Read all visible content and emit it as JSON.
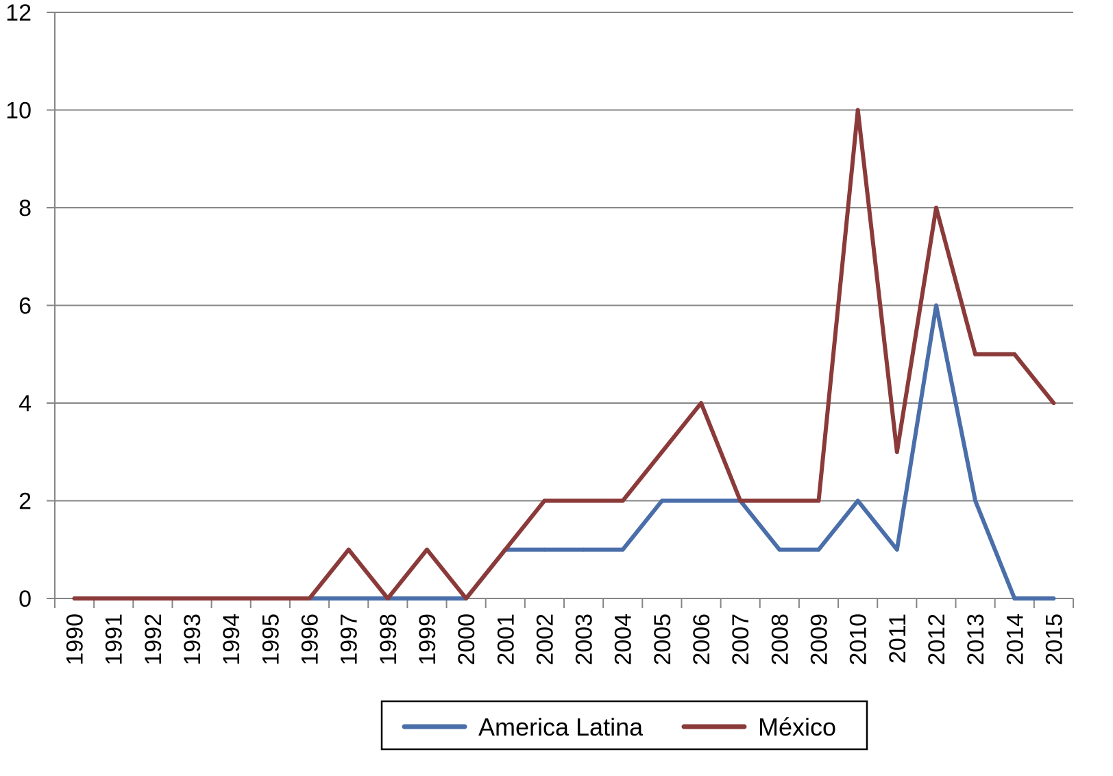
{
  "chart_data": {
    "type": "line",
    "title": "",
    "xlabel": "",
    "ylabel": "",
    "x": [
      "1990",
      "1991",
      "1992",
      "1993",
      "1994",
      "1995",
      "1996",
      "1997",
      "1998",
      "1999",
      "2000",
      "2001",
      "2002",
      "2003",
      "2004",
      "2005",
      "2006",
      "2007",
      "2008",
      "2009",
      "2010",
      "2011",
      "2012",
      "2013",
      "2014",
      "2015"
    ],
    "ylim": [
      0,
      12
    ],
    "yticks": [
      "0",
      "2",
      "4",
      "6",
      "8",
      "10",
      "12"
    ],
    "grid": true,
    "legend_position": "bottom",
    "series": [
      {
        "name": "America Latina",
        "color": "#4a6ea9",
        "values": [
          0,
          0,
          0,
          0,
          0,
          0,
          0,
          0,
          0,
          0,
          0,
          1,
          1,
          1,
          1,
          2,
          2,
          2,
          1,
          1,
          2,
          1,
          6,
          2,
          0,
          0
        ]
      },
      {
        "name": "México",
        "color": "#8b3a3a",
        "values": [
          0,
          0,
          0,
          0,
          0,
          0,
          0,
          1,
          0,
          1,
          0,
          1,
          2,
          2,
          2,
          3,
          4,
          2,
          2,
          2,
          10,
          3,
          8,
          5,
          5,
          4
        ]
      }
    ]
  }
}
